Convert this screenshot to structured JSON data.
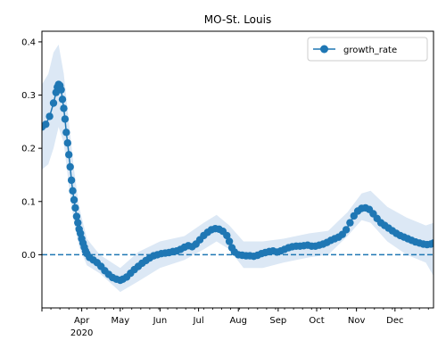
{
  "chart_data": {
    "type": "line",
    "title": "MO-St. Louis",
    "xlabel": "",
    "ylabel": "",
    "x_start": "2020-03-01",
    "x_end": "2020-12-31",
    "ylim": [
      -0.1,
      0.42
    ],
    "y_ticks": [
      "0.0",
      "0.1",
      "0.2",
      "0.3",
      "0.4"
    ],
    "y_tick_values": [
      0.0,
      0.1,
      0.2,
      0.3,
      0.4
    ],
    "x_tick_labels": [
      "Apr",
      "May",
      "Jun",
      "Jul",
      "Aug",
      "Sep",
      "Oct",
      "Nov",
      "Dec"
    ],
    "x_tick_dates": [
      "2020-04-01",
      "2020-05-01",
      "2020-06-01",
      "2020-07-01",
      "2020-08-01",
      "2020-09-01",
      "2020-10-01",
      "2020-11-01",
      "2020-12-01"
    ],
    "year_label": "2020",
    "reference_line": 0.0,
    "legend": {
      "position": "upper right"
    },
    "series": [
      {
        "name": "growth_rate",
        "color": "#1f77b4",
        "band_color": "#dce8f5",
        "points": [
          [
            "2020-03-01",
            0.24
          ],
          [
            "2020-03-04",
            0.245
          ],
          [
            "2020-03-07",
            0.26
          ],
          [
            "2020-03-10",
            0.285
          ],
          [
            "2020-03-12",
            0.305
          ],
          [
            "2020-03-13",
            0.315
          ],
          [
            "2020-03-14",
            0.32
          ],
          [
            "2020-03-15",
            0.318
          ],
          [
            "2020-03-16",
            0.31
          ],
          [
            "2020-03-17",
            0.292
          ],
          [
            "2020-03-18",
            0.275
          ],
          [
            "2020-03-19",
            0.255
          ],
          [
            "2020-03-20",
            0.23
          ],
          [
            "2020-03-21",
            0.21
          ],
          [
            "2020-03-22",
            0.188
          ],
          [
            "2020-03-23",
            0.165
          ],
          [
            "2020-03-24",
            0.14
          ],
          [
            "2020-03-25",
            0.12
          ],
          [
            "2020-03-26",
            0.103
          ],
          [
            "2020-03-27",
            0.088
          ],
          [
            "2020-03-28",
            0.072
          ],
          [
            "2020-03-29",
            0.06
          ],
          [
            "2020-03-30",
            0.048
          ],
          [
            "2020-03-31",
            0.04
          ],
          [
            "2020-04-01",
            0.03
          ],
          [
            "2020-04-02",
            0.022
          ],
          [
            "2020-04-03",
            0.014
          ],
          [
            "2020-04-04",
            0.007
          ],
          [
            "2020-04-05",
            0.002
          ],
          [
            "2020-04-07",
            -0.005
          ],
          [
            "2020-04-10",
            -0.01
          ],
          [
            "2020-04-13",
            -0.015
          ],
          [
            "2020-04-16",
            -0.022
          ],
          [
            "2020-04-19",
            -0.03
          ],
          [
            "2020-04-22",
            -0.037
          ],
          [
            "2020-04-25",
            -0.043
          ],
          [
            "2020-04-28",
            -0.046
          ],
          [
            "2020-05-01",
            -0.048
          ],
          [
            "2020-05-03",
            -0.046
          ],
          [
            "2020-05-06",
            -0.042
          ],
          [
            "2020-05-09",
            -0.035
          ],
          [
            "2020-05-12",
            -0.028
          ],
          [
            "2020-05-15",
            -0.022
          ],
          [
            "2020-05-18",
            -0.016
          ],
          [
            "2020-05-21",
            -0.011
          ],
          [
            "2020-05-24",
            -0.006
          ],
          [
            "2020-05-27",
            -0.002
          ],
          [
            "2020-05-30",
            0.0
          ],
          [
            "2020-06-02",
            0.002
          ],
          [
            "2020-06-05",
            0.003
          ],
          [
            "2020-06-08",
            0.004
          ],
          [
            "2020-06-11",
            0.006
          ],
          [
            "2020-06-14",
            0.007
          ],
          [
            "2020-06-17",
            0.01
          ],
          [
            "2020-06-20",
            0.014
          ],
          [
            "2020-06-23",
            0.017
          ],
          [
            "2020-06-26",
            0.015
          ],
          [
            "2020-06-29",
            0.02
          ],
          [
            "2020-07-02",
            0.028
          ],
          [
            "2020-07-05",
            0.036
          ],
          [
            "2020-07-08",
            0.042
          ],
          [
            "2020-07-11",
            0.047
          ],
          [
            "2020-07-14",
            0.049
          ],
          [
            "2020-07-17",
            0.048
          ],
          [
            "2020-07-20",
            0.044
          ],
          [
            "2020-07-23",
            0.036
          ],
          [
            "2020-07-25",
            0.025
          ],
          [
            "2020-07-27",
            0.013
          ],
          [
            "2020-07-29",
            0.005
          ],
          [
            "2020-08-01",
            0.0
          ],
          [
            "2020-08-04",
            -0.001
          ],
          [
            "2020-08-07",
            -0.002
          ],
          [
            "2020-08-10",
            -0.002
          ],
          [
            "2020-08-13",
            -0.003
          ],
          [
            "2020-08-16",
            -0.001
          ],
          [
            "2020-08-19",
            0.002
          ],
          [
            "2020-08-22",
            0.004
          ],
          [
            "2020-08-25",
            0.006
          ],
          [
            "2020-08-28",
            0.007
          ],
          [
            "2020-08-31",
            0.005
          ],
          [
            "2020-09-03",
            0.007
          ],
          [
            "2020-09-06",
            0.01
          ],
          [
            "2020-09-09",
            0.013
          ],
          [
            "2020-09-12",
            0.015
          ],
          [
            "2020-09-15",
            0.016
          ],
          [
            "2020-09-18",
            0.016
          ],
          [
            "2020-09-21",
            0.017
          ],
          [
            "2020-09-24",
            0.018
          ],
          [
            "2020-09-27",
            0.016
          ],
          [
            "2020-09-30",
            0.016
          ],
          [
            "2020-10-03",
            0.018
          ],
          [
            "2020-10-06",
            0.02
          ],
          [
            "2020-10-09",
            0.023
          ],
          [
            "2020-10-12",
            0.027
          ],
          [
            "2020-10-15",
            0.03
          ],
          [
            "2020-10-18",
            0.033
          ],
          [
            "2020-10-21",
            0.038
          ],
          [
            "2020-10-24",
            0.047
          ],
          [
            "2020-10-27",
            0.06
          ],
          [
            "2020-10-30",
            0.073
          ],
          [
            "2020-11-02",
            0.082
          ],
          [
            "2020-11-05",
            0.087
          ],
          [
            "2020-11-08",
            0.088
          ],
          [
            "2020-11-11",
            0.085
          ],
          [
            "2020-11-14",
            0.077
          ],
          [
            "2020-11-17",
            0.068
          ],
          [
            "2020-11-20",
            0.06
          ],
          [
            "2020-11-23",
            0.055
          ],
          [
            "2020-11-26",
            0.05
          ],
          [
            "2020-11-29",
            0.045
          ],
          [
            "2020-12-02",
            0.04
          ],
          [
            "2020-12-05",
            0.036
          ],
          [
            "2020-12-08",
            0.033
          ],
          [
            "2020-12-11",
            0.03
          ],
          [
            "2020-12-14",
            0.027
          ],
          [
            "2020-12-17",
            0.024
          ],
          [
            "2020-12-20",
            0.022
          ],
          [
            "2020-12-23",
            0.02
          ],
          [
            "2020-12-26",
            0.019
          ],
          [
            "2020-12-29",
            0.02
          ],
          [
            "2020-12-31",
            0.022
          ]
        ],
        "band_upper": [
          [
            "2020-03-01",
            0.32
          ],
          [
            "2020-03-06",
            0.34
          ],
          [
            "2020-03-10",
            0.38
          ],
          [
            "2020-03-14",
            0.395
          ],
          [
            "2020-03-18",
            0.34
          ],
          [
            "2020-03-22",
            0.25
          ],
          [
            "2020-03-26",
            0.16
          ],
          [
            "2020-03-30",
            0.09
          ],
          [
            "2020-04-05",
            0.03
          ],
          [
            "2020-04-15",
            0.0
          ],
          [
            "2020-05-01",
            -0.025
          ],
          [
            "2020-05-15",
            0.005
          ],
          [
            "2020-06-01",
            0.025
          ],
          [
            "2020-06-20",
            0.035
          ],
          [
            "2020-07-05",
            0.06
          ],
          [
            "2020-07-15",
            0.075
          ],
          [
            "2020-07-25",
            0.055
          ],
          [
            "2020-08-05",
            0.025
          ],
          [
            "2020-08-20",
            0.025
          ],
          [
            "2020-09-05",
            0.03
          ],
          [
            "2020-09-25",
            0.04
          ],
          [
            "2020-10-10",
            0.045
          ],
          [
            "2020-10-25",
            0.08
          ],
          [
            "2020-11-05",
            0.115
          ],
          [
            "2020-11-12",
            0.12
          ],
          [
            "2020-11-25",
            0.09
          ],
          [
            "2020-12-10",
            0.07
          ],
          [
            "2020-12-25",
            0.055
          ],
          [
            "2020-12-31",
            0.06
          ]
        ],
        "band_lower": [
          [
            "2020-03-01",
            0.16
          ],
          [
            "2020-03-06",
            0.17
          ],
          [
            "2020-03-10",
            0.2
          ],
          [
            "2020-03-14",
            0.24
          ],
          [
            "2020-03-18",
            0.21
          ],
          [
            "2020-03-22",
            0.13
          ],
          [
            "2020-03-26",
            0.06
          ],
          [
            "2020-03-30",
            0.015
          ],
          [
            "2020-04-05",
            -0.02
          ],
          [
            "2020-04-15",
            -0.035
          ],
          [
            "2020-05-01",
            -0.07
          ],
          [
            "2020-05-15",
            -0.05
          ],
          [
            "2020-06-01",
            -0.025
          ],
          [
            "2020-06-20",
            -0.01
          ],
          [
            "2020-07-05",
            0.01
          ],
          [
            "2020-07-15",
            0.025
          ],
          [
            "2020-07-25",
            0.01
          ],
          [
            "2020-08-05",
            -0.025
          ],
          [
            "2020-08-20",
            -0.025
          ],
          [
            "2020-09-05",
            -0.015
          ],
          [
            "2020-09-25",
            -0.005
          ],
          [
            "2020-10-10",
            0.0
          ],
          [
            "2020-10-25",
            0.035
          ],
          [
            "2020-11-05",
            0.065
          ],
          [
            "2020-11-12",
            0.06
          ],
          [
            "2020-11-25",
            0.025
          ],
          [
            "2020-12-10",
            0.0
          ],
          [
            "2020-12-25",
            -0.015
          ],
          [
            "2020-12-31",
            -0.04
          ]
        ]
      }
    ]
  }
}
